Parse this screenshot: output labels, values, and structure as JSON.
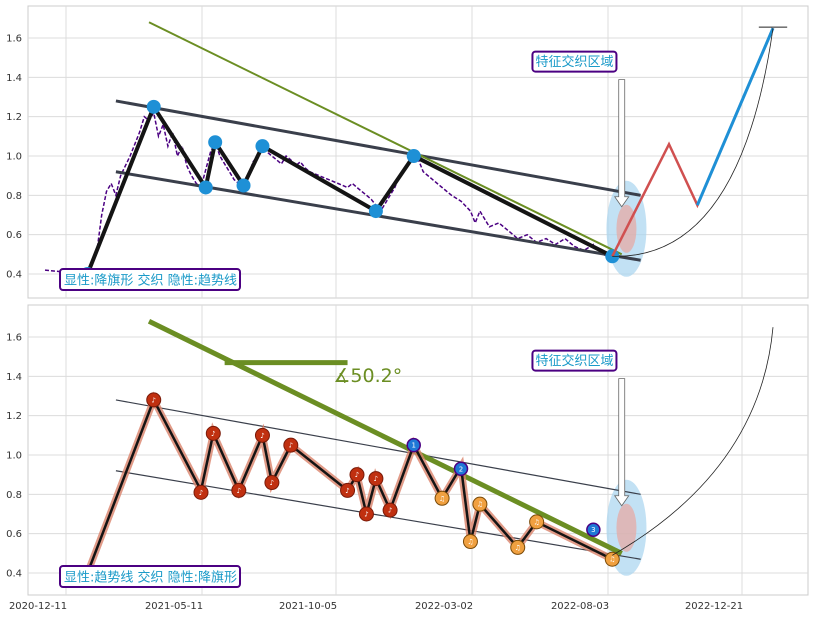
{
  "chart_data": [
    {
      "type": "line",
      "panel": "top",
      "ylim": [
        0.3,
        1.75
      ],
      "yticks": [
        "0.4",
        "0.6",
        "0.8",
        "1.0",
        "1.2",
        "1.4",
        "1.6"
      ],
      "grid": true,
      "label_bottom": "显性:降旗形 交织 隐性:趋势线",
      "label_top": "特征交织区域",
      "price": [
        [
          0.0,
          0.42
        ],
        [
          0.02,
          0.41
        ],
        [
          0.035,
          0.42
        ],
        [
          0.045,
          0.4
        ],
        [
          0.05,
          0.45
        ],
        [
          0.055,
          0.52
        ],
        [
          0.06,
          0.7
        ],
        [
          0.065,
          0.82
        ],
        [
          0.07,
          0.86
        ],
        [
          0.075,
          0.8
        ],
        [
          0.08,
          0.9
        ],
        [
          0.09,
          1.0
        ],
        [
          0.1,
          1.12
        ],
        [
          0.105,
          1.2
        ],
        [
          0.11,
          1.18
        ],
        [
          0.115,
          1.22
        ],
        [
          0.12,
          1.1
        ],
        [
          0.125,
          1.16
        ],
        [
          0.13,
          1.05
        ],
        [
          0.135,
          1.12
        ],
        [
          0.14,
          1.0
        ],
        [
          0.145,
          1.05
        ],
        [
          0.15,
          0.95
        ],
        [
          0.155,
          0.9
        ],
        [
          0.16,
          0.86
        ],
        [
          0.165,
          0.84
        ],
        [
          0.17,
          0.93
        ],
        [
          0.175,
          1.02
        ],
        [
          0.18,
          1.07
        ],
        [
          0.185,
          1.0
        ],
        [
          0.19,
          0.96
        ],
        [
          0.195,
          0.92
        ],
        [
          0.2,
          0.88
        ],
        [
          0.205,
          0.86
        ],
        [
          0.21,
          0.84
        ],
        [
          0.215,
          0.9
        ],
        [
          0.22,
          0.97
        ],
        [
          0.225,
          1.0
        ],
        [
          0.23,
          1.04
        ],
        [
          0.235,
          1.02
        ],
        [
          0.24,
          1.0
        ],
        [
          0.245,
          0.98
        ],
        [
          0.25,
          0.96
        ],
        [
          0.255,
          1.0
        ],
        [
          0.26,
          0.98
        ],
        [
          0.265,
          0.95
        ],
        [
          0.27,
          0.97
        ],
        [
          0.275,
          0.94
        ],
        [
          0.28,
          0.92
        ],
        [
          0.29,
          0.9
        ],
        [
          0.3,
          0.88
        ],
        [
          0.31,
          0.86
        ],
        [
          0.32,
          0.84
        ],
        [
          0.325,
          0.86
        ],
        [
          0.33,
          0.84
        ],
        [
          0.335,
          0.82
        ],
        [
          0.34,
          0.8
        ],
        [
          0.345,
          0.78
        ],
        [
          0.35,
          0.75
        ],
        [
          0.355,
          0.72
        ],
        [
          0.36,
          0.76
        ],
        [
          0.365,
          0.8
        ],
        [
          0.37,
          0.84
        ],
        [
          0.375,
          0.9
        ],
        [
          0.38,
          0.93
        ],
        [
          0.385,
          0.97
        ],
        [
          0.39,
          1.0
        ],
        [
          0.395,
          0.98
        ],
        [
          0.4,
          0.92
        ],
        [
          0.41,
          0.88
        ],
        [
          0.42,
          0.84
        ],
        [
          0.43,
          0.8
        ],
        [
          0.44,
          0.77
        ],
        [
          0.45,
          0.72
        ],
        [
          0.455,
          0.66
        ],
        [
          0.46,
          0.72
        ],
        [
          0.465,
          0.68
        ],
        [
          0.47,
          0.64
        ],
        [
          0.48,
          0.66
        ],
        [
          0.49,
          0.62
        ],
        [
          0.5,
          0.58
        ],
        [
          0.51,
          0.6
        ],
        [
          0.52,
          0.56
        ],
        [
          0.53,
          0.58
        ],
        [
          0.54,
          0.55
        ],
        [
          0.55,
          0.58
        ],
        [
          0.56,
          0.54
        ],
        [
          0.57,
          0.52
        ],
        [
          0.58,
          0.55
        ],
        [
          0.59,
          0.5
        ],
        [
          0.6,
          0.48
        ]
      ],
      "zigzag": [
        [
          0.045,
          0.4
        ],
        [
          0.115,
          1.25
        ],
        [
          0.17,
          0.84
        ],
        [
          0.18,
          1.07
        ],
        [
          0.21,
          0.85
        ],
        [
          0.23,
          1.05
        ],
        [
          0.35,
          0.72
        ],
        [
          0.39,
          1.0
        ],
        [
          0.6,
          0.49
        ]
      ],
      "pivots": [
        [
          0.045,
          0.4
        ],
        [
          0.115,
          1.25
        ],
        [
          0.17,
          0.84
        ],
        [
          0.18,
          1.07
        ],
        [
          0.21,
          0.85
        ],
        [
          0.23,
          1.05
        ],
        [
          0.35,
          0.72
        ],
        [
          0.39,
          1.0
        ],
        [
          0.6,
          0.49
        ]
      ],
      "channel_upper": [
        [
          0.075,
          1.28
        ],
        [
          0.63,
          0.8
        ]
      ],
      "channel_lower": [
        [
          0.075,
          0.92
        ],
        [
          0.63,
          0.47
        ]
      ],
      "trend_line": [
        [
          0.11,
          1.68
        ],
        [
          0.61,
          0.5
        ]
      ],
      "projection": [
        [
          0.6,
          0.49
        ],
        [
          0.66,
          1.06
        ],
        [
          0.69,
          0.75
        ],
        [
          0.77,
          1.65
        ]
      ]
    },
    {
      "type": "line",
      "panel": "bottom",
      "ylim": [
        0.3,
        1.75
      ],
      "yticks": [
        "0.4",
        "0.6",
        "0.8",
        "1.0",
        "1.2",
        "1.4",
        "1.6"
      ],
      "xticks": [
        "2020-12-11",
        "2021-05-11",
        "2021-10-05",
        "2022-03-02",
        "2022-08-03",
        "2022-12-21"
      ],
      "grid": true,
      "label_bottom": "显性:趋势线 交织 隐性:降旗形",
      "label_top": "特征交织区域",
      "angle_label": "∡50.2°",
      "trend_line": [
        [
          0.11,
          1.68
        ],
        [
          0.61,
          0.5
        ]
      ],
      "channel_upper": [
        [
          0.075,
          1.28
        ],
        [
          0.63,
          0.8
        ]
      ],
      "channel_lower": [
        [
          0.075,
          0.92
        ],
        [
          0.63,
          0.47
        ]
      ],
      "zigzag": [
        [
          0.045,
          0.4
        ],
        [
          0.115,
          1.28
        ],
        [
          0.165,
          0.82
        ],
        [
          0.178,
          1.11
        ],
        [
          0.205,
          0.82
        ],
        [
          0.23,
          1.1
        ],
        [
          0.24,
          0.86
        ],
        [
          0.26,
          1.05
        ],
        [
          0.32,
          0.82
        ],
        [
          0.33,
          0.9
        ],
        [
          0.34,
          0.7
        ],
        [
          0.35,
          0.88
        ],
        [
          0.365,
          0.72
        ],
        [
          0.39,
          1.05
        ],
        [
          0.42,
          0.78
        ],
        [
          0.44,
          0.94
        ],
        [
          0.45,
          0.56
        ],
        [
          0.46,
          0.75
        ],
        [
          0.5,
          0.53
        ],
        [
          0.52,
          0.66
        ],
        [
          0.6,
          0.47
        ]
      ],
      "red_markers": [
        [
          0.115,
          1.28
        ],
        [
          0.165,
          0.81
        ],
        [
          0.178,
          1.11
        ],
        [
          0.205,
          0.82
        ],
        [
          0.23,
          1.1
        ],
        [
          0.24,
          0.86
        ],
        [
          0.26,
          1.05
        ],
        [
          0.32,
          0.82
        ],
        [
          0.33,
          0.9
        ],
        [
          0.34,
          0.7
        ],
        [
          0.35,
          0.88
        ],
        [
          0.365,
          0.72
        ]
      ],
      "orange_markers": [
        [
          0.42,
          0.78
        ],
        [
          0.45,
          0.56
        ],
        [
          0.46,
          0.75
        ],
        [
          0.5,
          0.53
        ],
        [
          0.52,
          0.66
        ],
        [
          0.6,
          0.47
        ]
      ],
      "blue_markers": [
        {
          "x": 0.39,
          "y": 1.05,
          "label": "1"
        },
        {
          "x": 0.44,
          "y": 0.93,
          "label": "2"
        },
        {
          "x": 0.58,
          "y": 0.62,
          "label": "3"
        }
      ]
    }
  ]
}
